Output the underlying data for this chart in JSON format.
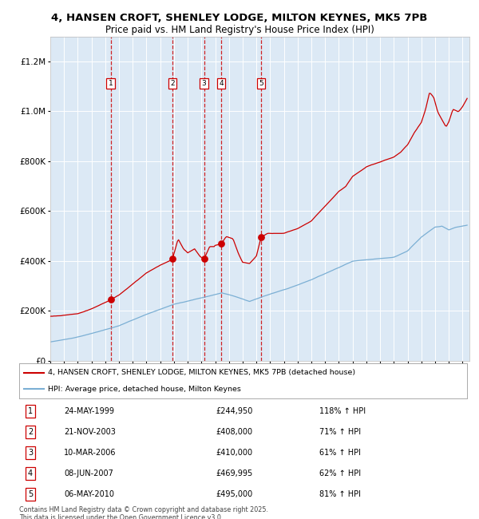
{
  "title": "4, HANSEN CROFT, SHENLEY LODGE, MILTON KEYNES, MK5 7PB",
  "subtitle": "Price paid vs. HM Land Registry's House Price Index (HPI)",
  "legend_line1": "4, HANSEN CROFT, SHENLEY LODGE, MILTON KEYNES, MK5 7PB (detached house)",
  "legend_line2": "HPI: Average price, detached house, Milton Keynes",
  "footer": "Contains HM Land Registry data © Crown copyright and database right 2025.\nThis data is licensed under the Open Government Licence v3.0.",
  "transactions": [
    {
      "num": 1,
      "date": "24-MAY-1999",
      "price": 244950,
      "pct": "118% ↑ HPI",
      "date_x": 1999.39
    },
    {
      "num": 2,
      "date": "21-NOV-2003",
      "price": 408000,
      "pct": "71% ↑ HPI",
      "date_x": 2003.89
    },
    {
      "num": 3,
      "date": "10-MAR-2006",
      "price": 410000,
      "pct": "61% ↑ HPI",
      "date_x": 2006.19
    },
    {
      "num": 4,
      "date": "08-JUN-2007",
      "price": 469995,
      "pct": "62% ↑ HPI",
      "date_x": 2007.44
    },
    {
      "num": 5,
      "date": "06-MAY-2010",
      "price": 495000,
      "pct": "81% ↑ HPI",
      "date_x": 2010.34
    }
  ],
  "ylim": [
    0,
    1300000
  ],
  "xlim_start": 1995.0,
  "xlim_end": 2025.5,
  "bg_color": "#dce9f5",
  "red_line_color": "#cc0000",
  "blue_line_color": "#7bafd4",
  "dashed_line_color": "#cc0000",
  "grid_color": "#ffffff",
  "title_fontsize": 9.5,
  "subtitle_fontsize": 8.5
}
